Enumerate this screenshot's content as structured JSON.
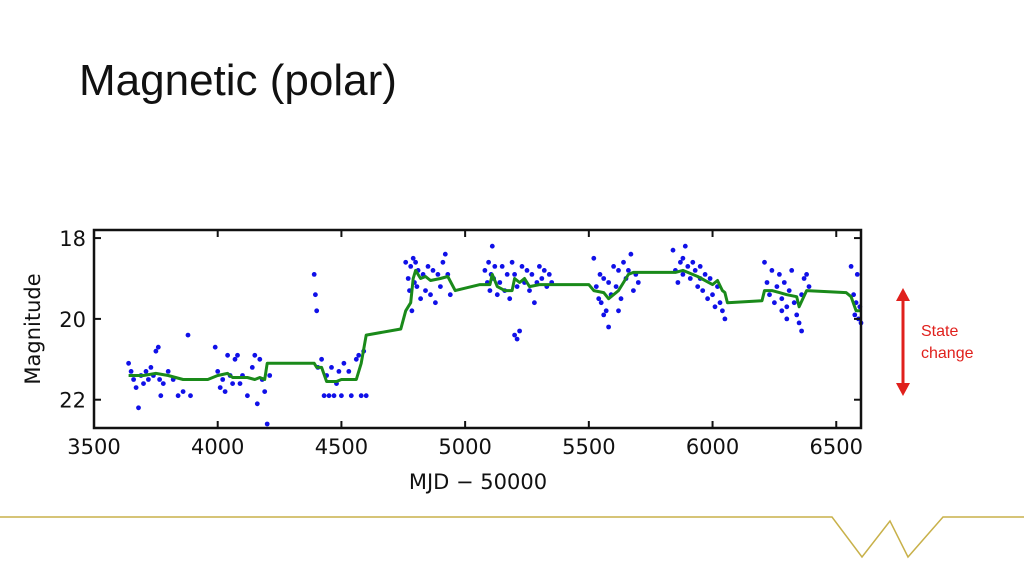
{
  "slide": {
    "title": "Magnetic (polar)"
  },
  "annotation": {
    "line1": "State",
    "line2": "change",
    "color": "#e0201c"
  },
  "chart_data": {
    "type": "scatter",
    "title": "",
    "xlabel": "MJD − 50000",
    "ylabel": "Magnitude",
    "xlim": [
      3500,
      6600
    ],
    "ylim": [
      22.7,
      17.8
    ],
    "y_inverted": true,
    "xticks": [
      3500,
      4000,
      4500,
      5000,
      5500,
      6000,
      6500
    ],
    "yticks": [
      18,
      20,
      22
    ],
    "grid": false,
    "point_color": "#1010e8",
    "line_color": "#1a8a1a",
    "series": [
      {
        "name": "observations",
        "style": "scatter",
        "points": [
          [
            3640,
            21.1
          ],
          [
            3650,
            21.3
          ],
          [
            3660,
            21.5
          ],
          [
            3670,
            21.7
          ],
          [
            3680,
            22.2
          ],
          [
            3690,
            21.4
          ],
          [
            3700,
            21.6
          ],
          [
            3710,
            21.3
          ],
          [
            3720,
            21.5
          ],
          [
            3730,
            21.2
          ],
          [
            3740,
            21.4
          ],
          [
            3750,
            20.8
          ],
          [
            3760,
            20.7
          ],
          [
            3765,
            21.5
          ],
          [
            3770,
            21.9
          ],
          [
            3780,
            21.6
          ],
          [
            3800,
            21.3
          ],
          [
            3820,
            21.5
          ],
          [
            3840,
            21.9
          ],
          [
            3860,
            21.8
          ],
          [
            3880,
            20.4
          ],
          [
            3890,
            21.9
          ],
          [
            3990,
            20.7
          ],
          [
            4000,
            21.3
          ],
          [
            4010,
            21.7
          ],
          [
            4020,
            21.5
          ],
          [
            4030,
            21.8
          ],
          [
            4040,
            20.9
          ],
          [
            4050,
            21.4
          ],
          [
            4060,
            21.6
          ],
          [
            4070,
            21.0
          ],
          [
            4080,
            20.9
          ],
          [
            4090,
            21.6
          ],
          [
            4100,
            21.4
          ],
          [
            4120,
            21.9
          ],
          [
            4140,
            21.2
          ],
          [
            4150,
            20.9
          ],
          [
            4160,
            22.1
          ],
          [
            4170,
            21.0
          ],
          [
            4180,
            21.5
          ],
          [
            4190,
            21.8
          ],
          [
            4200,
            22.6
          ],
          [
            4210,
            21.4
          ],
          [
            4390,
            18.9
          ],
          [
            4395,
            19.4
          ],
          [
            4400,
            19.8
          ],
          [
            4405,
            21.2
          ],
          [
            4420,
            21.0
          ],
          [
            4430,
            21.9
          ],
          [
            4440,
            21.4
          ],
          [
            4450,
            21.9
          ],
          [
            4460,
            21.2
          ],
          [
            4470,
            21.9
          ],
          [
            4480,
            21.6
          ],
          [
            4490,
            21.3
          ],
          [
            4500,
            21.9
          ],
          [
            4510,
            21.1
          ],
          [
            4530,
            21.3
          ],
          [
            4540,
            21.9
          ],
          [
            4560,
            21.0
          ],
          [
            4570,
            20.9
          ],
          [
            4580,
            21.9
          ],
          [
            4590,
            20.8
          ],
          [
            4600,
            21.9
          ],
          [
            4760,
            18.6
          ],
          [
            4770,
            19.0
          ],
          [
            4775,
            19.3
          ],
          [
            4780,
            18.7
          ],
          [
            4785,
            19.8
          ],
          [
            4790,
            18.5
          ],
          [
            4795,
            19.1
          ],
          [
            4800,
            18.6
          ],
          [
            4805,
            19.2
          ],
          [
            4810,
            18.8
          ],
          [
            4820,
            19.5
          ],
          [
            4830,
            18.9
          ],
          [
            4840,
            19.3
          ],
          [
            4850,
            18.7
          ],
          [
            4860,
            19.4
          ],
          [
            4870,
            18.8
          ],
          [
            4880,
            19.6
          ],
          [
            4890,
            18.9
          ],
          [
            4900,
            19.2
          ],
          [
            4910,
            18.6
          ],
          [
            4920,
            18.4
          ],
          [
            4930,
            18.9
          ],
          [
            4940,
            19.4
          ],
          [
            5080,
            18.8
          ],
          [
            5090,
            19.1
          ],
          [
            5095,
            18.6
          ],
          [
            5100,
            19.3
          ],
          [
            5105,
            18.9
          ],
          [
            5110,
            18.2
          ],
          [
            5115,
            19.0
          ],
          [
            5120,
            18.7
          ],
          [
            5130,
            19.4
          ],
          [
            5140,
            19.1
          ],
          [
            5150,
            18.7
          ],
          [
            5160,
            19.3
          ],
          [
            5170,
            18.9
          ],
          [
            5180,
            19.5
          ],
          [
            5190,
            18.6
          ],
          [
            5200,
            18.9
          ],
          [
            5210,
            19.2
          ],
          [
            5220,
            20.3
          ],
          [
            5230,
            18.7
          ],
          [
            5240,
            19.1
          ],
          [
            5250,
            18.8
          ],
          [
            5260,
            19.3
          ],
          [
            5270,
            18.9
          ],
          [
            5280,
            19.6
          ],
          [
            5290,
            19.1
          ],
          [
            5300,
            18.7
          ],
          [
            5310,
            19.0
          ],
          [
            5320,
            18.8
          ],
          [
            5330,
            19.2
          ],
          [
            5340,
            18.9
          ],
          [
            5350,
            19.1
          ],
          [
            5200,
            20.4
          ],
          [
            5210,
            20.5
          ],
          [
            5520,
            18.5
          ],
          [
            5530,
            19.2
          ],
          [
            5540,
            19.5
          ],
          [
            5545,
            18.9
          ],
          [
            5550,
            19.6
          ],
          [
            5560,
            19.0
          ],
          [
            5570,
            19.8
          ],
          [
            5580,
            19.1
          ],
          [
            5590,
            19.4
          ],
          [
            5600,
            18.7
          ],
          [
            5610,
            19.2
          ],
          [
            5620,
            18.8
          ],
          [
            5630,
            19.5
          ],
          [
            5640,
            18.6
          ],
          [
            5650,
            19.0
          ],
          [
            5660,
            18.8
          ],
          [
            5670,
            18.4
          ],
          [
            5680,
            19.3
          ],
          [
            5690,
            18.9
          ],
          [
            5700,
            19.1
          ],
          [
            5580,
            20.2
          ],
          [
            5560,
            19.9
          ],
          [
            5620,
            19.8
          ],
          [
            5840,
            18.3
          ],
          [
            5850,
            18.8
          ],
          [
            5860,
            19.1
          ],
          [
            5870,
            18.6
          ],
          [
            5880,
            18.9
          ],
          [
            5890,
            18.2
          ],
          [
            5900,
            18.7
          ],
          [
            5910,
            19.0
          ],
          [
            5920,
            18.6
          ],
          [
            5930,
            18.8
          ],
          [
            5940,
            19.2
          ],
          [
            5950,
            18.7
          ],
          [
            5960,
            19.3
          ],
          [
            5970,
            18.9
          ],
          [
            5980,
            19.5
          ],
          [
            5990,
            19.0
          ],
          [
            6000,
            19.4
          ],
          [
            6010,
            19.7
          ],
          [
            6020,
            19.2
          ],
          [
            6030,
            19.6
          ],
          [
            6040,
            19.8
          ],
          [
            6050,
            20.0
          ],
          [
            5880,
            18.5
          ],
          [
            5950,
            19.0
          ],
          [
            6210,
            18.6
          ],
          [
            6220,
            19.1
          ],
          [
            6230,
            19.4
          ],
          [
            6240,
            18.8
          ],
          [
            6250,
            19.6
          ],
          [
            6260,
            19.2
          ],
          [
            6270,
            18.9
          ],
          [
            6280,
            19.5
          ],
          [
            6290,
            19.1
          ],
          [
            6300,
            19.7
          ],
          [
            6310,
            19.3
          ],
          [
            6320,
            18.8
          ],
          [
            6330,
            19.6
          ],
          [
            6340,
            19.9
          ],
          [
            6350,
            20.1
          ],
          [
            6360,
            19.4
          ],
          [
            6370,
            19.0
          ],
          [
            6380,
            18.9
          ],
          [
            6390,
            19.2
          ],
          [
            6300,
            20.0
          ],
          [
            6280,
            19.8
          ],
          [
            6360,
            20.3
          ],
          [
            6560,
            18.7
          ],
          [
            6570,
            19.4
          ],
          [
            6575,
            19.9
          ],
          [
            6580,
            19.6
          ],
          [
            6585,
            18.9
          ],
          [
            6590,
            20.0
          ],
          [
            6595,
            19.7
          ],
          [
            6600,
            20.1
          ]
        ]
      },
      {
        "name": "smoothed",
        "style": "line",
        "points": [
          [
            3640,
            21.4
          ],
          [
            3700,
            21.4
          ],
          [
            3750,
            21.35
          ],
          [
            3800,
            21.4
          ],
          [
            3860,
            21.5
          ],
          [
            3960,
            21.5
          ],
          [
            4000,
            21.4
          ],
          [
            4040,
            21.35
          ],
          [
            4060,
            21.45
          ],
          [
            4120,
            21.45
          ],
          [
            4150,
            21.5
          ],
          [
            4170,
            21.45
          ],
          [
            4190,
            21.5
          ],
          [
            4200,
            21.1
          ],
          [
            4370,
            21.1
          ],
          [
            4390,
            21.1
          ],
          [
            4400,
            21.2
          ],
          [
            4420,
            21.2
          ],
          [
            4440,
            21.55
          ],
          [
            4480,
            21.55
          ],
          [
            4500,
            21.5
          ],
          [
            4560,
            21.5
          ],
          [
            4580,
            21.1
          ],
          [
            4600,
            20.4
          ],
          [
            4740,
            20.25
          ],
          [
            4760,
            19.8
          ],
          [
            4780,
            19.6
          ],
          [
            4790,
            19.0
          ],
          [
            4800,
            18.8
          ],
          [
            4820,
            19.0
          ],
          [
            4840,
            18.95
          ],
          [
            4860,
            19.05
          ],
          [
            4900,
            19.0
          ],
          [
            4930,
            18.95
          ],
          [
            4960,
            19.3
          ],
          [
            5060,
            19.15
          ],
          [
            5100,
            19.15
          ],
          [
            5110,
            18.9
          ],
          [
            5130,
            19.2
          ],
          [
            5160,
            19.3
          ],
          [
            5190,
            19.3
          ],
          [
            5200,
            19.0
          ],
          [
            5220,
            19.1
          ],
          [
            5240,
            19.0
          ],
          [
            5260,
            19.2
          ],
          [
            5300,
            19.15
          ],
          [
            5500,
            19.15
          ],
          [
            5520,
            19.3
          ],
          [
            5560,
            19.35
          ],
          [
            5580,
            19.5
          ],
          [
            5620,
            19.3
          ],
          [
            5640,
            19.1
          ],
          [
            5660,
            18.9
          ],
          [
            5680,
            18.85
          ],
          [
            5700,
            18.85
          ],
          [
            5850,
            18.85
          ],
          [
            5880,
            18.8
          ],
          [
            5900,
            18.85
          ],
          [
            5940,
            18.95
          ],
          [
            6000,
            19.15
          ],
          [
            6020,
            19.05
          ],
          [
            6040,
            19.3
          ],
          [
            6050,
            19.35
          ],
          [
            6060,
            19.6
          ],
          [
            6200,
            19.55
          ],
          [
            6210,
            19.3
          ],
          [
            6240,
            19.3
          ],
          [
            6270,
            19.35
          ],
          [
            6300,
            19.4
          ],
          [
            6340,
            19.45
          ],
          [
            6350,
            19.7
          ],
          [
            6380,
            19.3
          ],
          [
            6540,
            19.35
          ],
          [
            6560,
            19.45
          ],
          [
            6580,
            19.8
          ],
          [
            6600,
            19.8
          ]
        ]
      }
    ]
  }
}
